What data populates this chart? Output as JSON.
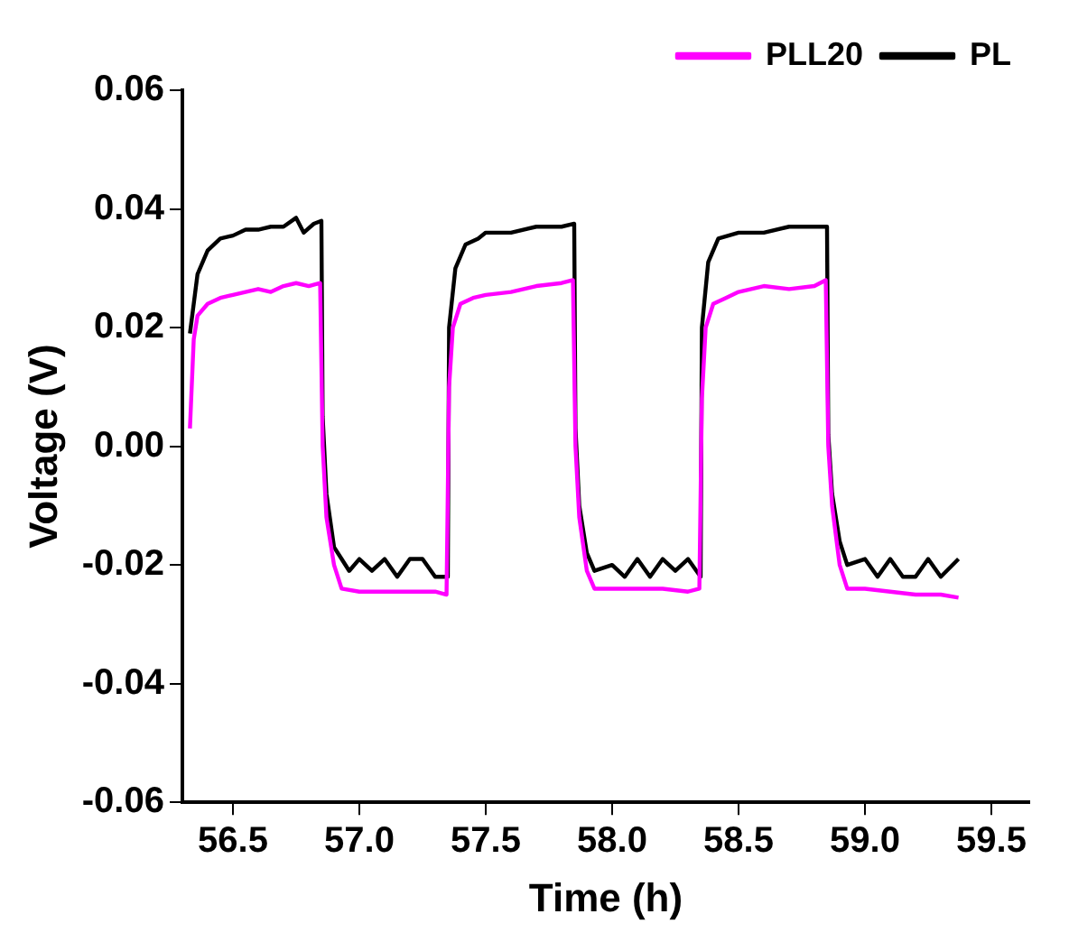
{
  "chart_data": {
    "type": "line",
    "xlabel": "Time (h)",
    "ylabel": "Voltage (V)",
    "xlim": [
      56.3,
      59.65
    ],
    "xticks": [
      {
        "value": 56.5,
        "label": "56.5"
      },
      {
        "value": 57,
        "label": "57.0"
      },
      {
        "value": 57.5,
        "label": "57.5"
      },
      {
        "value": 58,
        "label": "58.0"
      },
      {
        "value": 58.5,
        "label": "58.5"
      },
      {
        "value": 59,
        "label": "59.0"
      },
      {
        "value": 59.5,
        "label": "59.5"
      }
    ],
    "ylim": [
      -0.06,
      0.06
    ],
    "yticks": [
      {
        "value": -0.06,
        "label": "-0.06"
      },
      {
        "value": -0.04,
        "label": "-0.04"
      },
      {
        "value": -0.02,
        "label": "-0.02"
      },
      {
        "value": 0,
        "label": "0.00"
      },
      {
        "value": 0.02,
        "label": "0.02"
      },
      {
        "value": 0.04,
        "label": "0.04"
      },
      {
        "value": 0.06,
        "label": "0.06"
      }
    ],
    "grid": false,
    "legend": "top right",
    "marker": "none",
    "line_style": "solid",
    "series": [
      {
        "name": "PLL20",
        "color": "#ff00ff",
        "x": [
          56.33,
          56.345,
          56.36,
          56.4,
          56.45,
          56.5,
          56.55,
          56.6,
          56.65,
          56.7,
          56.75,
          56.8,
          56.845,
          56.855,
          56.87,
          56.9,
          56.93,
          57.0,
          57.1,
          57.2,
          57.3,
          57.345,
          57.355,
          57.37,
          57.4,
          57.45,
          57.5,
          57.6,
          57.7,
          57.8,
          57.845,
          57.855,
          57.87,
          57.9,
          57.93,
          58.0,
          58.2,
          58.3,
          58.345,
          58.355,
          58.37,
          58.4,
          58.45,
          58.5,
          58.6,
          58.7,
          58.8,
          58.845,
          58.855,
          58.87,
          58.9,
          58.93,
          59.0,
          59.1,
          59.2,
          59.3,
          59.37
        ],
        "values": [
          0.003,
          0.018,
          0.022,
          0.024,
          0.025,
          0.0255,
          0.026,
          0.0265,
          0.026,
          0.027,
          0.0275,
          0.027,
          0.0275,
          0.0,
          -0.012,
          -0.02,
          -0.024,
          -0.0245,
          -0.0245,
          -0.0245,
          -0.0245,
          -0.025,
          0.01,
          0.02,
          0.024,
          0.025,
          0.0255,
          0.026,
          0.027,
          0.0275,
          0.028,
          0.0,
          -0.012,
          -0.021,
          -0.024,
          -0.024,
          -0.024,
          -0.0245,
          -0.024,
          0.008,
          0.02,
          0.024,
          0.025,
          0.026,
          0.027,
          0.0265,
          0.027,
          0.028,
          0.0,
          -0.01,
          -0.02,
          -0.024,
          -0.024,
          -0.0245,
          -0.025,
          -0.025,
          -0.0255
        ]
      },
      {
        "name": "PL",
        "color": "#000000",
        "x": [
          56.33,
          56.345,
          56.36,
          56.4,
          56.45,
          56.5,
          56.55,
          56.6,
          56.65,
          56.7,
          56.75,
          56.78,
          56.82,
          56.85,
          56.855,
          56.87,
          56.9,
          56.93,
          56.96,
          57.0,
          57.05,
          57.1,
          57.15,
          57.2,
          57.25,
          57.3,
          57.35,
          57.355,
          57.38,
          57.42,
          57.47,
          57.5,
          57.6,
          57.7,
          57.8,
          57.85,
          57.855,
          57.87,
          57.9,
          57.93,
          58.0,
          58.05,
          58.1,
          58.15,
          58.2,
          58.25,
          58.3,
          58.35,
          58.355,
          58.38,
          58.42,
          58.5,
          58.6,
          58.7,
          58.8,
          58.85,
          58.855,
          58.87,
          58.9,
          58.93,
          59.0,
          59.05,
          59.1,
          59.15,
          59.2,
          59.25,
          59.3,
          59.37
        ],
        "values": [
          0.019,
          0.024,
          0.029,
          0.033,
          0.035,
          0.0355,
          0.0365,
          0.0365,
          0.037,
          0.037,
          0.0385,
          0.036,
          0.0375,
          0.038,
          0.005,
          -0.008,
          -0.017,
          -0.019,
          -0.021,
          -0.019,
          -0.021,
          -0.019,
          -0.022,
          -0.019,
          -0.019,
          -0.022,
          -0.022,
          0.02,
          0.03,
          0.034,
          0.035,
          0.036,
          0.036,
          0.037,
          0.037,
          0.0375,
          0.003,
          -0.01,
          -0.018,
          -0.021,
          -0.02,
          -0.022,
          -0.019,
          -0.022,
          -0.019,
          -0.021,
          -0.019,
          -0.022,
          0.02,
          0.031,
          0.035,
          0.036,
          0.036,
          0.037,
          0.037,
          0.037,
          0.002,
          -0.008,
          -0.016,
          -0.02,
          -0.019,
          -0.022,
          -0.019,
          -0.022,
          -0.022,
          -0.019,
          -0.022,
          -0.019
        ]
      }
    ]
  }
}
